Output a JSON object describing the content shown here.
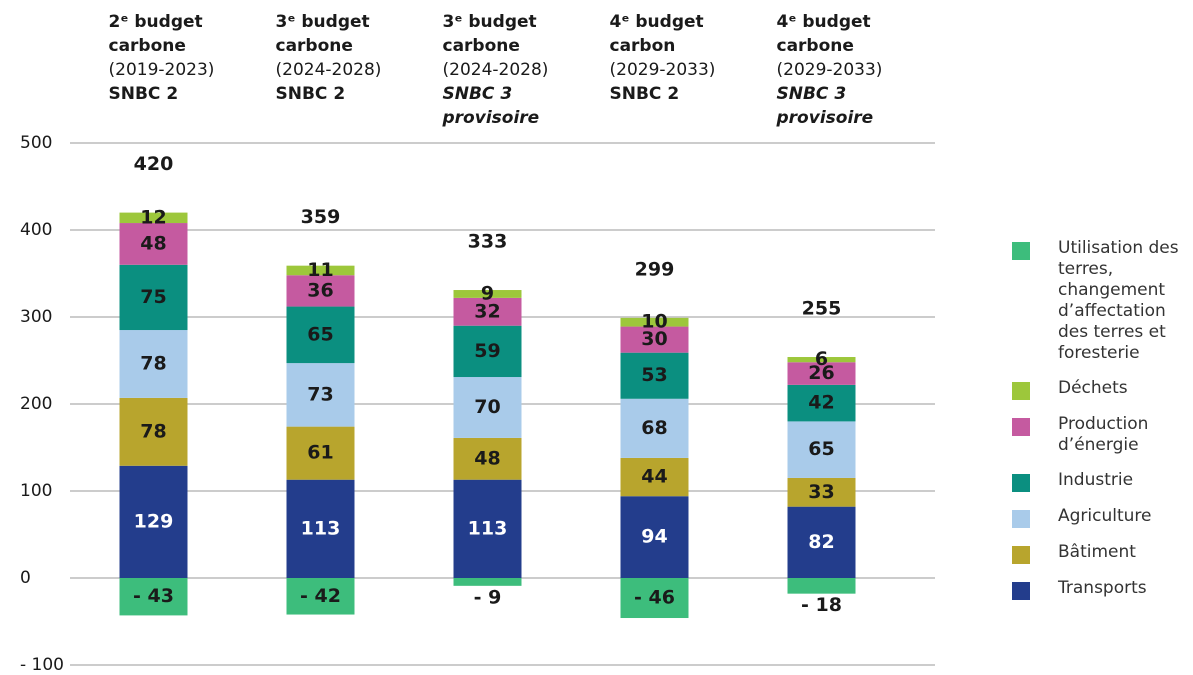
{
  "chart_data": {
    "type": "stacked-bar",
    "categories": [
      {
        "heading": [
          "2ᵉ budget",
          "carbone"
        ],
        "period": "(2019-2023)",
        "scenario": [
          "SNBC 2"
        ],
        "provisional": false
      },
      {
        "heading": [
          "3ᵉ budget",
          "carbone"
        ],
        "period": "(2024-2028)",
        "scenario": [
          "SNBC 2"
        ],
        "provisional": false
      },
      {
        "heading": [
          "3ᵉ budget",
          "carbone"
        ],
        "period": "(2024-2028)",
        "scenario": [
          "SNBC 3",
          "provisoire"
        ],
        "provisional": true
      },
      {
        "heading": [
          "4ᵉ budget",
          "carbon"
        ],
        "period": "(2029-2033)",
        "scenario": [
          "SNBC 2"
        ],
        "provisional": false
      },
      {
        "heading": [
          "4ᵉ budget",
          "carbone"
        ],
        "period": "(2029-2033)",
        "scenario": [
          "SNBC 3",
          "provisoire"
        ],
        "provisional": true
      }
    ],
    "series": [
      {
        "name": "Transports",
        "color": "#233d8c",
        "label_color": "#ffffff",
        "values": [
          129,
          113,
          113,
          94,
          82
        ]
      },
      {
        "name": "Bâtiment",
        "color": "#b8a52d",
        "label_color": "#1a1a1a",
        "values": [
          78,
          61,
          48,
          44,
          33
        ]
      },
      {
        "name": "Agriculture",
        "color": "#a9cbea",
        "label_color": "#1a1a1a",
        "values": [
          78,
          73,
          70,
          68,
          65
        ]
      },
      {
        "name": "Industrie",
        "color": "#0b8f80",
        "label_color": "#1a1a1a",
        "values": [
          75,
          65,
          59,
          53,
          42
        ]
      },
      {
        "name": "Production d’énergie",
        "color": "#c55aa0",
        "label_color": "#1a1a1a",
        "values": [
          48,
          36,
          32,
          30,
          26
        ]
      },
      {
        "name": "Déchets",
        "color": "#9dc73b",
        "label_color": "#1a1a1a",
        "values": [
          12,
          11,
          9,
          10,
          6
        ]
      },
      {
        "name": "Utilisation des terres, changement d’affectation des terres et foresterie",
        "color": "#3dbd7c",
        "label_color": "#1a1a1a",
        "values": [
          -43,
          -42,
          -9,
          -46,
          -18
        ],
        "value_labels": [
          "- 43",
          "- 42",
          "- 9",
          "- 46",
          "- 18"
        ]
      }
    ],
    "totals": [
      420,
      359,
      333,
      299,
      255
    ],
    "legend_order": [
      6,
      5,
      4,
      3,
      2,
      1,
      0
    ],
    "ylim": [
      -100,
      500
    ],
    "yticks": [
      500,
      400,
      300,
      200,
      100,
      0,
      {
        "value": -100,
        "label": "- 100"
      }
    ],
    "grid": true
  }
}
